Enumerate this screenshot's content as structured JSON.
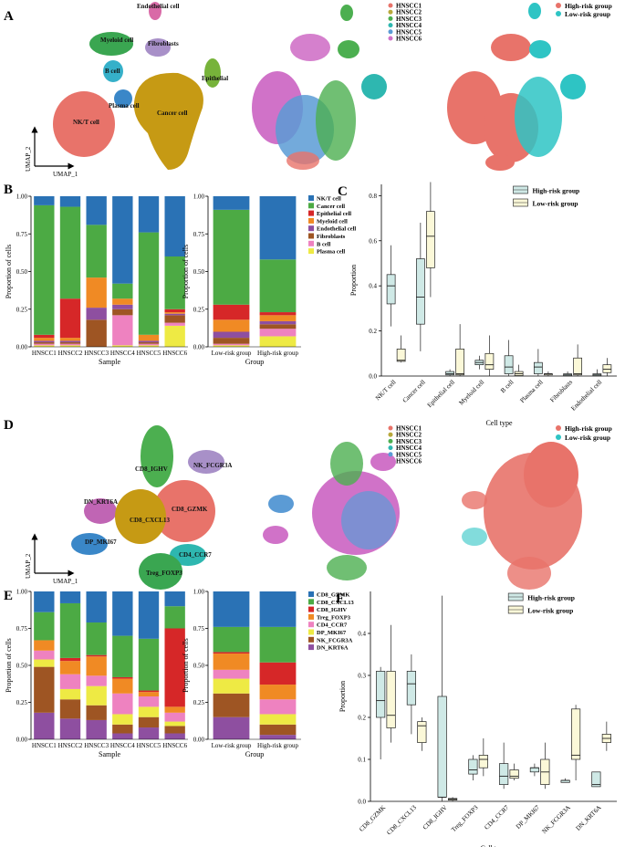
{
  "figure": {
    "panel_labels": [
      "A",
      "B",
      "C",
      "D",
      "E",
      "F"
    ],
    "samples": [
      "HNSCC1",
      "HNSCC2",
      "HNSCC3",
      "HNSCC4",
      "HNSCC5",
      "HNSCC6"
    ],
    "groups": [
      "High-risk group",
      "Low-risk group"
    ],
    "umap_axes": {
      "x": "UMAP_1",
      "y": "UMAP_2"
    },
    "colors": {
      "samples": [
        "#e8736a",
        "#b8a83b",
        "#4caf50",
        "#2eb7b0",
        "#5b9bd5",
        "#d072c8"
      ],
      "groups": [
        "#e8736a",
        "#2ec4c4"
      ],
      "cell_types": [
        "#2a72b5",
        "#4caa44",
        "#d62728",
        "#f08a24",
        "#8e4fa0",
        "#9e5523",
        "#ee82c0",
        "#eeea44"
      ],
      "tcell_types": [
        "#2a72b5",
        "#4caa44",
        "#d62728",
        "#f08a24",
        "#ee82c0",
        "#eeea44",
        "#9e5523",
        "#8e4fa0"
      ],
      "box_high": "#cfe9e6",
      "box_low": "#fbf8d8"
    }
  },
  "panelA": {
    "clusters": [
      "Endothelial cell",
      "Myeloid cell",
      "Fibroblasts",
      "B cell",
      "Epithelial",
      "Plasma cell",
      "NK/T cell",
      "Cancer cell"
    ]
  },
  "panelD": {
    "clusters": [
      "CD8_IGHV",
      "NK_FCGR3A",
      "DN_KRT6A",
      "CD8_GZMK",
      "CD8_CXCL13",
      "DP_MKI67",
      "CD4_CCR7",
      "Treg_FOXP3"
    ]
  },
  "chart_data": [
    {
      "id": "B_sample",
      "type": "bar",
      "stacked": true,
      "title": "",
      "xlabel": "Sample",
      "ylabel": "Proportion of cells",
      "ylim": [
        0,
        1
      ],
      "yticks": [
        "0.00",
        "0.25",
        "0.50",
        "0.75",
        "1.00"
      ],
      "categories": [
        "HNSCC1",
        "HNSCC2",
        "HNSCC3",
        "HNSCC4",
        "HNSCC5",
        "HNSCC6"
      ],
      "series": [
        {
          "name": "Plasma cell",
          "values": [
            0.01,
            0.01,
            0.0,
            0.01,
            0.01,
            0.14
          ]
        },
        {
          "name": "B cell",
          "values": [
            0.01,
            0.01,
            0.0,
            0.2,
            0.01,
            0.02
          ]
        },
        {
          "name": "Fibroblasts",
          "values": [
            0.01,
            0.01,
            0.18,
            0.04,
            0.01,
            0.05
          ]
        },
        {
          "name": "Endothelial cell",
          "values": [
            0.01,
            0.01,
            0.08,
            0.03,
            0.01,
            0.01
          ]
        },
        {
          "name": "Myeloid cell",
          "values": [
            0.02,
            0.02,
            0.2,
            0.04,
            0.04,
            0.01
          ]
        },
        {
          "name": "Epithelial cell",
          "values": [
            0.02,
            0.26,
            0.0,
            0.0,
            0.0,
            0.02
          ]
        },
        {
          "name": "Cancer cell",
          "values": [
            0.86,
            0.61,
            0.35,
            0.1,
            0.68,
            0.35
          ]
        },
        {
          "name": "NK/T cell",
          "values": [
            0.06,
            0.07,
            0.19,
            0.58,
            0.24,
            0.4
          ]
        }
      ]
    },
    {
      "id": "B_group",
      "type": "bar",
      "stacked": true,
      "xlabel": "Group",
      "ylabel": "Proportion of cells",
      "ylim": [
        0,
        1
      ],
      "yticks": [
        "0.00",
        "0.25",
        "0.50",
        "0.75",
        "1.00"
      ],
      "categories": [
        "Low-risk group",
        "High-risk group"
      ],
      "series": [
        {
          "name": "Plasma cell",
          "values": [
            0.01,
            0.07
          ]
        },
        {
          "name": "B cell",
          "values": [
            0.01,
            0.05
          ]
        },
        {
          "name": "Fibroblasts",
          "values": [
            0.04,
            0.03
          ]
        },
        {
          "name": "Endothelial cell",
          "values": [
            0.04,
            0.02
          ]
        },
        {
          "name": "Myeloid cell",
          "values": [
            0.08,
            0.04
          ]
        },
        {
          "name": "Epithelial cell",
          "values": [
            0.1,
            0.02
          ]
        },
        {
          "name": "Cancer cell",
          "values": [
            0.63,
            0.35
          ]
        },
        {
          "name": "NK/T cell",
          "values": [
            0.09,
            0.42
          ]
        }
      ]
    },
    {
      "id": "C",
      "type": "box",
      "xlabel": "Cell type",
      "ylabel": "Proportion",
      "ylim": [
        0,
        0.85
      ],
      "yticks": [
        "0.0",
        "0.2",
        "0.4",
        "0.6",
        "0.8"
      ],
      "categories": [
        "NK/T cell",
        "Cancer cell",
        "Epithelial cell",
        "Myeloid cell",
        "B cell",
        "Plasma cell",
        "Fibroblasts",
        "Endothelial cell"
      ],
      "legend": [
        "High-risk group",
        "Low-risk group"
      ],
      "series": [
        {
          "name": "High-risk group",
          "boxes": [
            [
              0.22,
              0.32,
              0.4,
              0.45,
              0.58
            ],
            [
              0.11,
              0.23,
              0.35,
              0.52,
              0.68
            ],
            [
              0.0,
              0.005,
              0.01,
              0.02,
              0.03
            ],
            [
              0.03,
              0.05,
              0.06,
              0.07,
              0.09
            ],
            [
              0.0,
              0.01,
              0.04,
              0.09,
              0.16
            ],
            [
              0.0,
              0.01,
              0.04,
              0.06,
              0.12
            ],
            [
              0.0,
              0.001,
              0.005,
              0.01,
              0.02
            ],
            [
              0.0,
              0.001,
              0.005,
              0.01,
              0.03
            ]
          ]
        },
        {
          "name": "Low-risk group",
          "boxes": [
            [
              0.06,
              0.065,
              0.07,
              0.12,
              0.18
            ],
            [
              0.35,
              0.48,
              0.62,
              0.73,
              0.86
            ],
            [
              0.0,
              0.005,
              0.01,
              0.12,
              0.23
            ],
            [
              0.0,
              0.03,
              0.05,
              0.1,
              0.18
            ],
            [
              0.0,
              0.002,
              0.01,
              0.02,
              0.05
            ],
            [
              0.0,
              0.005,
              0.01,
              0.01,
              0.02
            ],
            [
              0.0,
              0.005,
              0.01,
              0.08,
              0.14
            ],
            [
              0.0,
              0.015,
              0.03,
              0.05,
              0.08
            ]
          ]
        }
      ]
    },
    {
      "id": "E_sample",
      "type": "bar",
      "stacked": true,
      "xlabel": "Sample",
      "ylabel": "Proportion of cells",
      "ylim": [
        0,
        1
      ],
      "yticks": [
        "0.00",
        "0.25",
        "0.50",
        "0.75",
        "1.00"
      ],
      "categories": [
        "HNSCC1",
        "HNSCC2",
        "HNSCC3",
        "HNSCC4",
        "HNSCC5",
        "HNSCC6"
      ],
      "series": [
        {
          "name": "DN_KRT6A",
          "values": [
            0.18,
            0.14,
            0.13,
            0.04,
            0.08,
            0.04
          ]
        },
        {
          "name": "NK_FCGR3A",
          "values": [
            0.31,
            0.13,
            0.1,
            0.06,
            0.07,
            0.05
          ]
        },
        {
          "name": "DP_MKI67",
          "values": [
            0.05,
            0.07,
            0.13,
            0.07,
            0.07,
            0.03
          ]
        },
        {
          "name": "CD4_CCR7",
          "values": [
            0.06,
            0.1,
            0.07,
            0.14,
            0.07,
            0.06
          ]
        },
        {
          "name": "Treg_FOXP3",
          "values": [
            0.07,
            0.09,
            0.13,
            0.1,
            0.03,
            0.04
          ]
        },
        {
          "name": "CD8_IGHV",
          "values": [
            0.0,
            0.02,
            0.01,
            0.01,
            0.01,
            0.53
          ]
        },
        {
          "name": "CD8_CXCL13",
          "values": [
            0.19,
            0.37,
            0.22,
            0.28,
            0.35,
            0.15
          ]
        },
        {
          "name": "CD8_GZMK",
          "values": [
            0.14,
            0.08,
            0.21,
            0.3,
            0.32,
            0.1
          ]
        }
      ]
    },
    {
      "id": "E_group",
      "type": "bar",
      "stacked": true,
      "xlabel": "Group",
      "ylabel": "Proportion of cells",
      "ylim": [
        0,
        1
      ],
      "yticks": [
        "0.00",
        "0.25",
        "0.50",
        "0.75",
        "1.00"
      ],
      "categories": [
        "Low-risk group",
        "High-risk group"
      ],
      "series": [
        {
          "name": "DN_KRT6A",
          "values": [
            0.15,
            0.03
          ]
        },
        {
          "name": "NK_FCGR3A",
          "values": [
            0.16,
            0.07
          ]
        },
        {
          "name": "DP_MKI67",
          "values": [
            0.1,
            0.07
          ]
        },
        {
          "name": "CD4_CCR7",
          "values": [
            0.06,
            0.1
          ]
        },
        {
          "name": "Treg_FOXP3",
          "values": [
            0.11,
            0.1
          ]
        },
        {
          "name": "CD8_IGHV",
          "values": [
            0.01,
            0.15
          ]
        },
        {
          "name": "CD8_CXCL13",
          "values": [
            0.17,
            0.24
          ]
        },
        {
          "name": "CD8_GZMK",
          "values": [
            0.24,
            0.24
          ]
        }
      ]
    },
    {
      "id": "F",
      "type": "box",
      "xlabel": "Cell type",
      "ylabel": "Proportion",
      "ylim": [
        0,
        0.5
      ],
      "yticks": [
        "0.0",
        "0.1",
        "0.2",
        "0.3",
        "0.4"
      ],
      "categories": [
        "CD8_GZMK",
        "CD8_CXCL13",
        "CD8_IGHV",
        "Treg_FOXP3",
        "CD4_CCR7",
        "DP_MKI67",
        "NK_FCGR3A",
        "DN_KRT6A"
      ],
      "legend": [
        "High-risk group",
        "Low-risk group"
      ],
      "series": [
        {
          "name": "High-risk group",
          "boxes": [
            [
              0.1,
              0.2,
              0.24,
              0.31,
              0.32
            ],
            [
              0.16,
              0.23,
              0.28,
              0.31,
              0.35
            ],
            [
              0.0,
              0.01,
              0.01,
              0.25,
              0.49
            ],
            [
              0.05,
              0.065,
              0.075,
              0.1,
              0.11
            ],
            [
              0.03,
              0.04,
              0.06,
              0.09,
              0.14
            ],
            [
              0.06,
              0.07,
              0.08,
              0.08,
              0.09
            ],
            [
              0.045,
              0.045,
              0.05,
              0.05,
              0.055
            ],
            [
              0.035,
              0.035,
              0.04,
              0.07,
              0.07
            ]
          ]
        },
        {
          "name": "Low-risk group",
          "boxes": [
            [
              0.14,
              0.175,
              0.205,
              0.31,
              0.42
            ],
            [
              0.12,
              0.14,
              0.18,
              0.19,
              0.2
            ],
            [
              0.0,
              0.003,
              0.005,
              0.007,
              0.01
            ],
            [
              0.06,
              0.08,
              0.1,
              0.11,
              0.15
            ],
            [
              0.05,
              0.055,
              0.06,
              0.075,
              0.09
            ],
            [
              0.03,
              0.04,
              0.07,
              0.1,
              0.14
            ],
            [
              0.05,
              0.1,
              0.11,
              0.22,
              0.23
            ],
            [
              0.12,
              0.14,
              0.15,
              0.16,
              0.19
            ]
          ]
        }
      ]
    }
  ]
}
